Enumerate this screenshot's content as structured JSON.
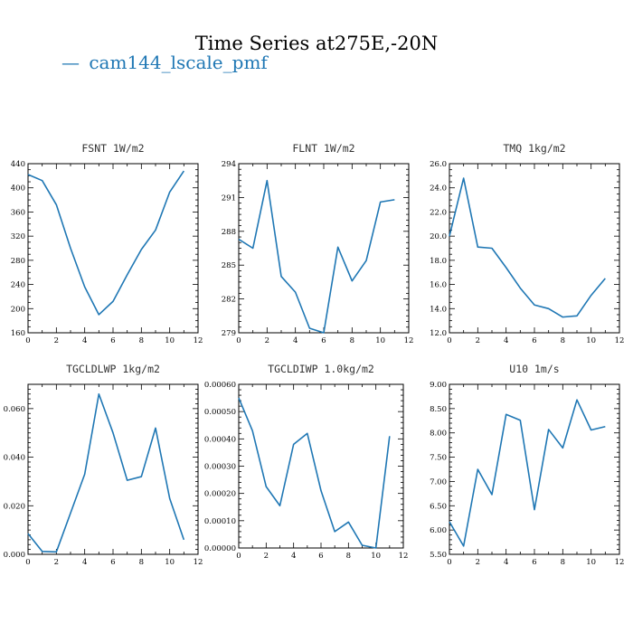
{
  "figure": {
    "title": "Time Series at275E,-20N",
    "legend": [
      {
        "symbol": "—",
        "label": "cam144_lscale_pmf",
        "color": "#1f77b4"
      }
    ]
  },
  "chart_data": [
    {
      "type": "line",
      "title": "FSNT  1W/m2",
      "x": [
        0,
        1,
        2,
        3,
        4,
        5,
        6,
        7,
        8,
        9,
        10,
        11
      ],
      "series": [
        {
          "name": "cam144_lscale_pmf",
          "values": [
            422,
            412,
            372,
            300,
            236,
            190,
            212,
            256,
            298,
            330,
            393,
            428
          ]
        }
      ],
      "xlim": [
        0,
        12
      ],
      "ylim": [
        160,
        440
      ],
      "xticks": [
        0,
        2,
        4,
        6,
        8,
        10,
        12
      ],
      "xminor": 1,
      "yticks": [
        160,
        200,
        240,
        280,
        320,
        360,
        400,
        440
      ],
      "ylabels": [
        "160",
        "200",
        "240",
        "280",
        "320",
        "360",
        "400",
        "440"
      ],
      "yminor": 10
    },
    {
      "type": "line",
      "title": "FLNT  1W/m2",
      "x": [
        0,
        1,
        2,
        3,
        4,
        5,
        6,
        7,
        8,
        9,
        10,
        11
      ],
      "series": [
        {
          "name": "cam144_lscale_pmf",
          "values": [
            287.3,
            286.5,
            292.5,
            284.0,
            282.6,
            279.4,
            279.0,
            286.6,
            283.6,
            285.4,
            290.6,
            290.8
          ]
        }
      ],
      "xlim": [
        0,
        12
      ],
      "ylim": [
        279,
        294
      ],
      "xticks": [
        0,
        2,
        4,
        6,
        8,
        10,
        12
      ],
      "xminor": 1,
      "yticks": [
        279,
        282,
        285,
        288,
        291,
        294
      ],
      "ylabels": [
        "279",
        "282",
        "285",
        "288",
        "291",
        "294"
      ],
      "yminor": 0.5
    },
    {
      "type": "line",
      "title": "TMQ  1kg/m2",
      "x": [
        0,
        1,
        2,
        3,
        4,
        5,
        6,
        7,
        8,
        9,
        10,
        11
      ],
      "series": [
        {
          "name": "cam144_lscale_pmf",
          "values": [
            20.0,
            24.8,
            19.1,
            19.0,
            17.4,
            15.7,
            14.3,
            14.0,
            13.3,
            13.4,
            15.1,
            16.5
          ]
        }
      ],
      "xlim": [
        0,
        12
      ],
      "ylim": [
        12,
        26
      ],
      "xticks": [
        0,
        2,
        4,
        6,
        8,
        10,
        12
      ],
      "xminor": 1,
      "yticks": [
        12,
        14,
        16,
        18,
        20,
        22,
        24,
        26
      ],
      "ylabels": [
        "12.0",
        "14.0",
        "16.0",
        "18.0",
        "20.0",
        "22.0",
        "24.0",
        "26.0"
      ],
      "yminor": 0.5
    },
    {
      "type": "line",
      "title": "TGCLDLWP  1kg/m2",
      "x": [
        0,
        1,
        2,
        3,
        4,
        5,
        6,
        7,
        8,
        9,
        10,
        11
      ],
      "series": [
        {
          "name": "cam144_lscale_pmf",
          "values": [
            0.0085,
            0.0012,
            0.001,
            0.017,
            0.033,
            0.066,
            0.05,
            0.0305,
            0.032,
            0.052,
            0.023,
            0.006
          ]
        }
      ],
      "xlim": [
        0,
        12
      ],
      "ylim": [
        0,
        0.07
      ],
      "xticks": [
        0,
        2,
        4,
        6,
        8,
        10,
        12
      ],
      "xminor": 1,
      "yticks": [
        0,
        0.02,
        0.04,
        0.06
      ],
      "ylabels": [
        "0.000",
        "0.020",
        "0.040",
        "0.060"
      ],
      "yminor": 0.002
    },
    {
      "type": "line",
      "title": "TGCLDIWP  1.0kg/m2",
      "x": [
        0,
        1,
        2,
        3,
        4,
        5,
        6,
        7,
        8,
        9,
        10,
        11
      ],
      "series": [
        {
          "name": "cam144_lscale_pmf",
          "values": [
            0.00055,
            0.00043,
            0.000225,
            0.000155,
            0.00038,
            0.00042,
            0.00021,
            6e-05,
            9.5e-05,
            1e-05,
            0.0,
            0.00041
          ]
        }
      ],
      "xlim": [
        0,
        12
      ],
      "ylim": [
        0,
        0.0006
      ],
      "xticks": [
        0,
        2,
        4,
        6,
        8,
        10,
        12
      ],
      "xminor": 1,
      "yticks": [
        0,
        0.0001,
        0.0002,
        0.0003,
        0.0004,
        0.0005,
        0.0006
      ],
      "ylabels": [
        "0.00000",
        "0.00010",
        "0.00020",
        "0.00030",
        "0.00040",
        "0.00050",
        "0.00060"
      ],
      "yminor": 2e-05
    },
    {
      "type": "line",
      "title": "U10  1m/s",
      "x": [
        0,
        1,
        2,
        3,
        4,
        5,
        6,
        7,
        8,
        9,
        10,
        11
      ],
      "series": [
        {
          "name": "cam144_lscale_pmf",
          "values": [
            6.17,
            5.67,
            7.25,
            6.73,
            8.38,
            8.26,
            6.42,
            8.07,
            7.69,
            8.68,
            8.06,
            8.13
          ]
        }
      ],
      "xlim": [
        0,
        12
      ],
      "ylim": [
        5.5,
        9.0
      ],
      "xticks": [
        0,
        2,
        4,
        6,
        8,
        10,
        12
      ],
      "xminor": 1,
      "yticks": [
        5.5,
        6.0,
        6.5,
        7.0,
        7.5,
        8.0,
        8.5,
        9.0
      ],
      "ylabels": [
        "5.50",
        "6.00",
        "6.50",
        "7.00",
        "7.50",
        "8.00",
        "8.50",
        "9.00"
      ],
      "yminor": 0.1
    }
  ]
}
